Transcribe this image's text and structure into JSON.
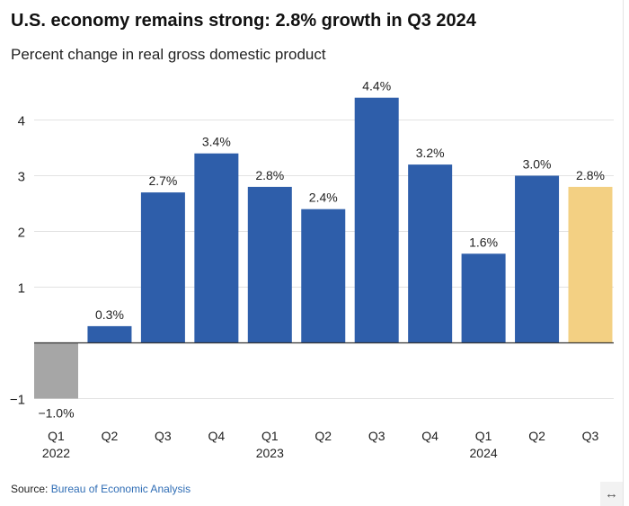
{
  "title": "U.S. economy remains strong: 2.8% growth in Q3 2024",
  "subtitle": "Percent change in real gross domestic product",
  "source_label": "Source:",
  "source_link": "Bureau of Economic Analysis",
  "expand_icon": "↔",
  "chart_data": {
    "type": "bar",
    "title": "U.S. economy remains strong: 2.8% growth in Q3 2024",
    "subtitle": "Percent change in real gross domestic product",
    "categories": [
      "Q1",
      "Q2",
      "Q3",
      "Q4",
      "Q1",
      "Q2",
      "Q3",
      "Q4",
      "Q1",
      "Q2",
      "Q3"
    ],
    "year_labels": [
      "2022",
      "",
      "",
      "",
      "2023",
      "",
      "",
      "",
      "2024",
      "",
      ""
    ],
    "values": [
      -1.0,
      0.3,
      2.7,
      3.4,
      2.8,
      2.4,
      4.4,
      3.2,
      1.6,
      3.0,
      2.8
    ],
    "data_labels": [
      "−1.0%",
      "0.3%",
      "2.7%",
      "3.4%",
      "2.8%",
      "2.4%",
      "4.4%",
      "3.2%",
      "1.6%",
      "3.0%",
      "2.8%"
    ],
    "bar_colors": [
      "#a6a6a6",
      "#2e5eaa",
      "#2e5eaa",
      "#2e5eaa",
      "#2e5eaa",
      "#2e5eaa",
      "#2e5eaa",
      "#2e5eaa",
      "#2e5eaa",
      "#2e5eaa",
      "#f3d083"
    ],
    "yticks": [
      -1,
      1,
      2,
      3,
      4
    ],
    "ytick_labels": [
      "−1",
      "1",
      "2",
      "3",
      "4"
    ],
    "ylim": [
      -1,
      4.6
    ],
    "grid": true,
    "xlabel": "",
    "ylabel": ""
  }
}
